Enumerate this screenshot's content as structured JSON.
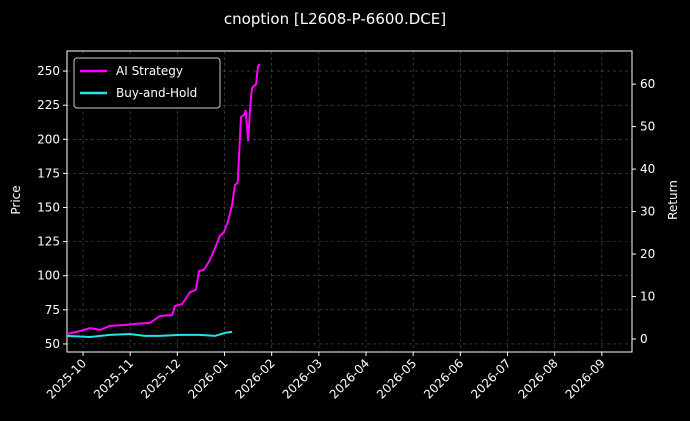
{
  "chart_data": {
    "type": "line",
    "title": "cnoption [L2608-P-6600.DCE]",
    "y_label": "Price",
    "y2_label": "Return",
    "xlim": [
      9.66,
      21.64
    ],
    "xticks": [
      {
        "value": 10,
        "label": "2025-10"
      },
      {
        "value": 11,
        "label": "2025-11"
      },
      {
        "value": 12,
        "label": "2025-12"
      },
      {
        "value": 13,
        "label": "2026-01"
      },
      {
        "value": 14,
        "label": "2026-02"
      },
      {
        "value": 15,
        "label": "2026-03"
      },
      {
        "value": 16,
        "label": "2026-04"
      },
      {
        "value": 17,
        "label": "2026-05"
      },
      {
        "value": 18,
        "label": "2026-06"
      },
      {
        "value": 19,
        "label": "2026-07"
      },
      {
        "value": 20,
        "label": "2026-08"
      },
      {
        "value": 21,
        "label": "2026-09"
      }
    ],
    "ylim": [
      44.1,
      264.7
    ],
    "yticks": [
      50,
      75,
      100,
      125,
      150,
      175,
      200,
      225,
      250
    ],
    "y2lim": [
      -3.06,
      67.8
    ],
    "y2ticks": [
      0,
      10,
      20,
      30,
      40,
      50,
      60
    ],
    "grid": true,
    "legend": "upper left",
    "series": [
      {
        "name": "AI Strategy",
        "color": "#ff00ff",
        "x": [
          9.66,
          9.94,
          10.15,
          10.36,
          10.57,
          10.89,
          11.1,
          11.42,
          11.63,
          11.89,
          11.95,
          12.1,
          12.27,
          12.39,
          12.46,
          12.56,
          12.69,
          12.8,
          12.9,
          12.99,
          13.07,
          13.16,
          13.22,
          13.28,
          13.35,
          13.41,
          13.45,
          13.5,
          13.54,
          13.58,
          13.67,
          13.71,
          13.75
        ],
        "values": [
          57.3,
          59.5,
          61.7,
          60.3,
          63.2,
          63.9,
          64.7,
          65.4,
          70.5,
          71.2,
          77.8,
          79.3,
          88,
          89.6,
          103.5,
          104.2,
          111.5,
          120.3,
          129.1,
          132,
          139.4,
          151.8,
          166.5,
          168,
          216.3,
          217.8,
          221.4,
          198.7,
          221.4,
          237.5,
          240.5,
          253.7,
          255.1
        ]
      },
      {
        "name": "Buy-and-Hold",
        "color": "#22e5e5",
        "x": [
          9.66,
          10.15,
          10.57,
          10.99,
          11.31,
          11.63,
          12.06,
          12.48,
          12.8,
          13.01,
          13.16
        ],
        "values": [
          55.9,
          55.1,
          56.6,
          57.3,
          55.9,
          55.9,
          56.6,
          56.6,
          55.9,
          58.1,
          58.8
        ]
      }
    ]
  }
}
